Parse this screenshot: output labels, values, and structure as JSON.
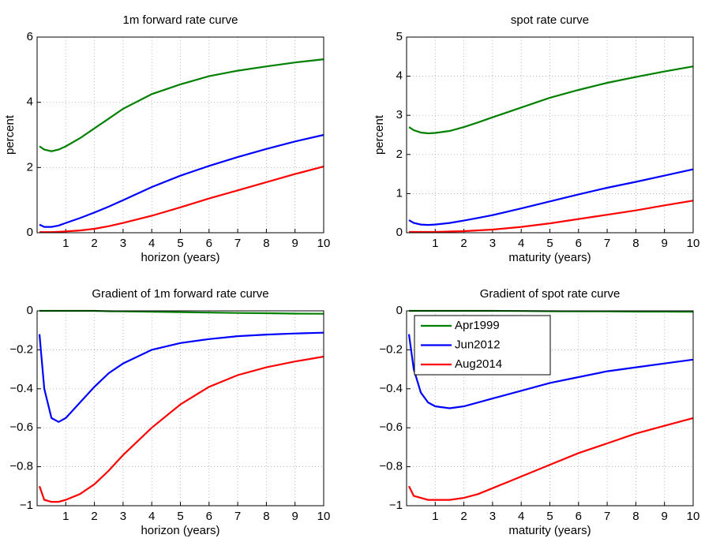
{
  "chart_data": [
    {
      "type": "line",
      "title": "1m forward rate curve",
      "x_label": "horizon (years)",
      "y_label": "percent",
      "x": [
        0.083,
        0.25,
        0.5,
        0.75,
        1,
        1.5,
        2,
        2.5,
        3,
        4,
        5,
        6,
        7,
        8,
        9,
        10
      ],
      "series": [
        {
          "color": "#008000",
          "values": [
            2.65,
            2.55,
            2.5,
            2.55,
            2.65,
            2.9,
            3.2,
            3.5,
            3.8,
            4.25,
            4.55,
            4.8,
            4.97,
            5.1,
            5.22,
            5.32
          ]
        },
        {
          "color": "#0000ff",
          "values": [
            0.25,
            0.18,
            0.18,
            0.22,
            0.3,
            0.45,
            0.62,
            0.8,
            1.0,
            1.4,
            1.75,
            2.05,
            2.32,
            2.57,
            2.8,
            3.0
          ]
        },
        {
          "color": "#ff0000",
          "values": [
            0.02,
            0.02,
            0.02,
            0.03,
            0.04,
            0.07,
            0.12,
            0.2,
            0.3,
            0.52,
            0.78,
            1.05,
            1.3,
            1.55,
            1.8,
            2.03
          ]
        }
      ],
      "xlim": [
        0,
        10
      ],
      "xticks": [
        1,
        2,
        3,
        4,
        5,
        6,
        7,
        8,
        9,
        10
      ],
      "ylim": [
        0,
        6
      ],
      "yticks": [
        0,
        2,
        4,
        6
      ],
      "grid": true
    },
    {
      "type": "line",
      "title": "spot rate curve",
      "x_label": "maturity (years)",
      "y_label": "percent",
      "x": [
        0.083,
        0.25,
        0.5,
        0.75,
        1,
        1.5,
        2,
        2.5,
        3,
        4,
        5,
        6,
        7,
        8,
        9,
        10
      ],
      "series": [
        {
          "color": "#008000",
          "values": [
            2.7,
            2.62,
            2.56,
            2.54,
            2.55,
            2.6,
            2.7,
            2.82,
            2.95,
            3.2,
            3.45,
            3.65,
            3.83,
            3.98,
            4.12,
            4.25
          ]
        },
        {
          "color": "#0000ff",
          "values": [
            0.32,
            0.25,
            0.21,
            0.2,
            0.21,
            0.25,
            0.31,
            0.38,
            0.45,
            0.62,
            0.8,
            0.98,
            1.15,
            1.3,
            1.46,
            1.62
          ]
        },
        {
          "color": "#ff0000",
          "values": [
            0.02,
            0.02,
            0.02,
            0.02,
            0.02,
            0.03,
            0.04,
            0.06,
            0.08,
            0.15,
            0.24,
            0.35,
            0.46,
            0.57,
            0.7,
            0.82
          ]
        }
      ],
      "xlim": [
        0,
        10
      ],
      "xticks": [
        1,
        2,
        3,
        4,
        5,
        6,
        7,
        8,
        9,
        10
      ],
      "ylim": [
        0,
        5
      ],
      "yticks": [
        0,
        1,
        2,
        3,
        4,
        5
      ],
      "grid": true
    },
    {
      "type": "line",
      "title": "Gradient of 1m forward rate curve",
      "x_label": "horizon (years)",
      "x": [
        0.083,
        0.25,
        0.5,
        0.75,
        1,
        1.5,
        2,
        2.5,
        3,
        4,
        5,
        6,
        7,
        8,
        9,
        10
      ],
      "series": [
        {
          "color": "#008000",
          "values": [
            0,
            0,
            0,
            0,
            0,
            0,
            0,
            -0.002,
            -0.003,
            -0.005,
            -0.007,
            -0.009,
            -0.011,
            -0.012,
            -0.014,
            -0.015
          ]
        },
        {
          "color": "#0000ff",
          "values": [
            -0.12,
            -0.4,
            -0.55,
            -0.57,
            -0.55,
            -0.47,
            -0.39,
            -0.32,
            -0.27,
            -0.2,
            -0.165,
            -0.145,
            -0.13,
            -0.122,
            -0.116,
            -0.112
          ]
        },
        {
          "color": "#ff0000",
          "values": [
            -0.9,
            -0.97,
            -0.98,
            -0.98,
            -0.97,
            -0.94,
            -0.89,
            -0.82,
            -0.74,
            -0.6,
            -0.48,
            -0.39,
            -0.33,
            -0.29,
            -0.26,
            -0.235
          ]
        }
      ],
      "xlim": [
        0,
        10
      ],
      "xticks": [
        1,
        2,
        3,
        4,
        5,
        6,
        7,
        8,
        9,
        10
      ],
      "ylim": [
        -1,
        0
      ],
      "yticks": [
        {
          "value": -1,
          "label": "−1"
        },
        {
          "value": -0.8,
          "label": "−0.8"
        },
        {
          "value": -0.6,
          "label": "−0.6"
        },
        {
          "value": -0.4,
          "label": "−0.4"
        },
        {
          "value": -0.2,
          "label": "−0.2"
        },
        0
      ],
      "grid": true
    },
    {
      "type": "line",
      "title": "Gradient of spot rate curve",
      "x_label": "maturity (years)",
      "x": [
        0.083,
        0.25,
        0.5,
        0.75,
        1,
        1.5,
        2,
        2.5,
        3,
        4,
        5,
        6,
        7,
        8,
        9,
        10
      ],
      "series": [
        {
          "name": "Apr1999",
          "color": "#008000",
          "values": [
            0,
            0,
            0,
            0,
            0,
            0,
            0,
            0,
            0,
            -0.001,
            -0.002,
            -0.003,
            -0.003,
            -0.004,
            -0.004,
            -0.005
          ]
        },
        {
          "name": "Jun2012",
          "color": "#0000ff",
          "values": [
            -0.12,
            -0.3,
            -0.42,
            -0.47,
            -0.49,
            -0.5,
            -0.49,
            -0.47,
            -0.45,
            -0.41,
            -0.37,
            -0.34,
            -0.31,
            -0.29,
            -0.27,
            -0.25
          ]
        },
        {
          "name": "Aug2014",
          "color": "#ff0000",
          "values": [
            -0.9,
            -0.95,
            -0.96,
            -0.97,
            -0.97,
            -0.97,
            -0.96,
            -0.94,
            -0.91,
            -0.85,
            -0.79,
            -0.73,
            -0.68,
            -0.63,
            -0.59,
            -0.55
          ]
        }
      ],
      "xlim": [
        0,
        10
      ],
      "xticks": [
        1,
        2,
        3,
        4,
        5,
        6,
        7,
        8,
        9,
        10
      ],
      "ylim": [
        -1,
        0
      ],
      "yticks": [
        {
          "value": -1,
          "label": "−1"
        },
        {
          "value": -0.8,
          "label": "−0.8"
        },
        {
          "value": -0.6,
          "label": "−0.6"
        },
        {
          "value": -0.4,
          "label": "−0.4"
        },
        {
          "value": -0.2,
          "label": "−0.2"
        },
        0
      ],
      "grid": true,
      "legend": "upper left"
    }
  ]
}
